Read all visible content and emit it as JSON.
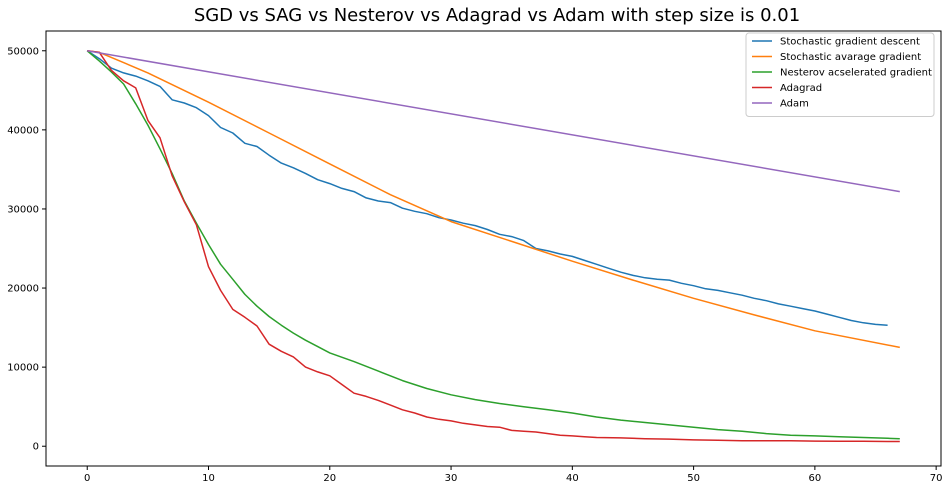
{
  "chart_data": {
    "type": "line",
    "title": "SGD vs SAG vs Nesterov vs Adagrad vs Adam with step size is 0.01",
    "xlabel": "",
    "ylabel": "",
    "xlim": [
      -3.4,
      70.4
    ],
    "ylim": [
      -2500,
      52500
    ],
    "xticks": [
      0,
      10,
      20,
      30,
      40,
      50,
      60,
      70
    ],
    "yticks": [
      0,
      10000,
      20000,
      30000,
      40000,
      50000
    ],
    "grid": false,
    "legend_position": "top-right",
    "series": [
      {
        "name": "Stochastic gradient descent",
        "color": "#1f77b4",
        "points": [
          [
            0,
            50000
          ],
          [
            1,
            49000
          ],
          [
            2,
            47800
          ],
          [
            3,
            47200
          ],
          [
            4,
            46800
          ],
          [
            5,
            46200
          ],
          [
            6,
            45500
          ],
          [
            7,
            43800
          ],
          [
            8,
            43400
          ],
          [
            9,
            42800
          ],
          [
            10,
            41800
          ],
          [
            11,
            40300
          ],
          [
            12,
            39600
          ],
          [
            13,
            38300
          ],
          [
            14,
            37900
          ],
          [
            15,
            36800
          ],
          [
            16,
            35800
          ],
          [
            17,
            35200
          ],
          [
            18,
            34500
          ],
          [
            19,
            33700
          ],
          [
            20,
            33200
          ],
          [
            21,
            32600
          ],
          [
            22,
            32200
          ],
          [
            23,
            31400
          ],
          [
            24,
            31000
          ],
          [
            25,
            30800
          ],
          [
            26,
            30100
          ],
          [
            27,
            29700
          ],
          [
            28,
            29400
          ],
          [
            29,
            28900
          ],
          [
            30,
            28600
          ],
          [
            31,
            28200
          ],
          [
            32,
            27900
          ],
          [
            33,
            27400
          ],
          [
            34,
            26800
          ],
          [
            35,
            26500
          ],
          [
            36,
            26000
          ],
          [
            37,
            25000
          ],
          [
            38,
            24700
          ],
          [
            39,
            24300
          ],
          [
            40,
            24000
          ],
          [
            41,
            23500
          ],
          [
            42,
            23000
          ],
          [
            43,
            22500
          ],
          [
            44,
            22000
          ],
          [
            45,
            21600
          ],
          [
            46,
            21300
          ],
          [
            47,
            21100
          ],
          [
            48,
            21000
          ],
          [
            49,
            20600
          ],
          [
            50,
            20300
          ],
          [
            51,
            19900
          ],
          [
            52,
            19700
          ],
          [
            53,
            19400
          ],
          [
            54,
            19100
          ],
          [
            55,
            18700
          ],
          [
            56,
            18400
          ],
          [
            57,
            18000
          ],
          [
            58,
            17700
          ],
          [
            59,
            17400
          ],
          [
            60,
            17100
          ],
          [
            61,
            16700
          ],
          [
            62,
            16300
          ],
          [
            63,
            15900
          ],
          [
            64,
            15600
          ],
          [
            65,
            15400
          ],
          [
            66,
            15300
          ]
        ]
      },
      {
        "name": "Stochastic avarage gradient",
        "color": "#ff7f0e",
        "points": [
          [
            0,
            50000
          ],
          [
            1,
            49800
          ],
          [
            5,
            47200
          ],
          [
            10,
            43500
          ],
          [
            15,
            39600
          ],
          [
            20,
            35700
          ],
          [
            25,
            31800
          ],
          [
            30,
            28400
          ],
          [
            35,
            25900
          ],
          [
            40,
            23400
          ],
          [
            45,
            21000
          ],
          [
            50,
            18700
          ],
          [
            55,
            16600
          ],
          [
            60,
            14600
          ],
          [
            67,
            12500
          ]
        ]
      },
      {
        "name": "Nesterov acselerated gradient",
        "color": "#2ca02c",
        "points": [
          [
            0,
            50000
          ],
          [
            1,
            48700
          ],
          [
            2,
            47300
          ],
          [
            3,
            45800
          ],
          [
            4,
            43300
          ],
          [
            5,
            40600
          ],
          [
            6,
            37600
          ],
          [
            7,
            34500
          ],
          [
            8,
            31000
          ],
          [
            9,
            28200
          ],
          [
            10,
            25500
          ],
          [
            11,
            23000
          ],
          [
            12,
            21100
          ],
          [
            13,
            19200
          ],
          [
            14,
            17700
          ],
          [
            15,
            16400
          ],
          [
            16,
            15300
          ],
          [
            17,
            14300
          ],
          [
            18,
            13400
          ],
          [
            19,
            12600
          ],
          [
            20,
            11800
          ],
          [
            22,
            10700
          ],
          [
            24,
            9500
          ],
          [
            26,
            8300
          ],
          [
            28,
            7300
          ],
          [
            30,
            6500
          ],
          [
            32,
            5900
          ],
          [
            34,
            5400
          ],
          [
            36,
            5000
          ],
          [
            38,
            4600
          ],
          [
            40,
            4200
          ],
          [
            42,
            3700
          ],
          [
            44,
            3300
          ],
          [
            46,
            3000
          ],
          [
            48,
            2700
          ],
          [
            50,
            2400
          ],
          [
            52,
            2100
          ],
          [
            54,
            1900
          ],
          [
            56,
            1600
          ],
          [
            58,
            1400
          ],
          [
            60,
            1300
          ],
          [
            62,
            1200
          ],
          [
            64,
            1100
          ],
          [
            66,
            1000
          ],
          [
            67,
            950
          ]
        ]
      },
      {
        "name": "Adagrad",
        "color": "#d62728",
        "points": [
          [
            0,
            50000
          ],
          [
            1,
            49800
          ],
          [
            2,
            47500
          ],
          [
            3,
            46200
          ],
          [
            4,
            45300
          ],
          [
            5,
            41200
          ],
          [
            6,
            39000
          ],
          [
            7,
            34200
          ],
          [
            8,
            30900
          ],
          [
            9,
            28000
          ],
          [
            10,
            22700
          ],
          [
            11,
            19700
          ],
          [
            12,
            17300
          ],
          [
            13,
            16300
          ],
          [
            14,
            15200
          ],
          [
            15,
            12900
          ],
          [
            16,
            12000
          ],
          [
            17,
            11300
          ],
          [
            18,
            10000
          ],
          [
            19,
            9400
          ],
          [
            20,
            8900
          ],
          [
            21,
            7800
          ],
          [
            22,
            6700
          ],
          [
            23,
            6300
          ],
          [
            24,
            5800
          ],
          [
            25,
            5200
          ],
          [
            26,
            4600
          ],
          [
            27,
            4200
          ],
          [
            28,
            3700
          ],
          [
            29,
            3400
          ],
          [
            30,
            3200
          ],
          [
            31,
            2900
          ],
          [
            32,
            2700
          ],
          [
            33,
            2500
          ],
          [
            34,
            2400
          ],
          [
            35,
            2000
          ],
          [
            36,
            1900
          ],
          [
            37,
            1800
          ],
          [
            38,
            1600
          ],
          [
            39,
            1400
          ],
          [
            40,
            1300
          ],
          [
            41,
            1200
          ],
          [
            42,
            1100
          ],
          [
            44,
            1050
          ],
          [
            46,
            950
          ],
          [
            48,
            900
          ],
          [
            50,
            800
          ],
          [
            52,
            750
          ],
          [
            54,
            700
          ],
          [
            56,
            700
          ],
          [
            58,
            680
          ],
          [
            60,
            650
          ],
          [
            62,
            630
          ],
          [
            64,
            620
          ],
          [
            66,
            600
          ],
          [
            67,
            600
          ]
        ]
      },
      {
        "name": "Adam",
        "color": "#9467bd",
        "points": [
          [
            0,
            50000
          ],
          [
            67,
            32200
          ]
        ]
      }
    ]
  }
}
